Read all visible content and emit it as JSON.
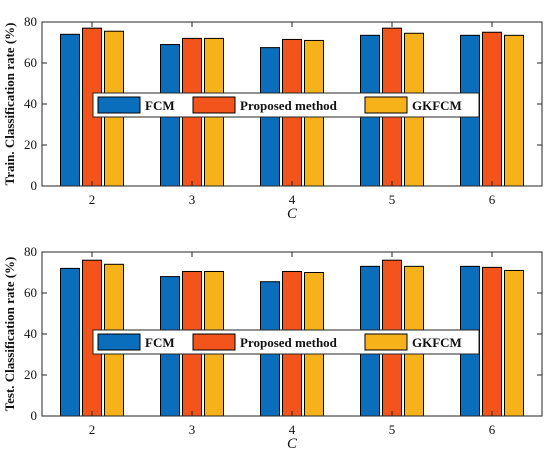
{
  "colors": {
    "FCM": "#0B6EBD",
    "Proposed method": "#F2541B",
    "GKFCM": "#F7B21A"
  },
  "chart_data": [
    {
      "type": "bar",
      "categories": [
        "2",
        "3",
        "4",
        "5",
        "6"
      ],
      "series": [
        {
          "name": "FCM",
          "values": [
            74,
            69,
            67.5,
            73.5,
            73.5
          ]
        },
        {
          "name": "Proposed method",
          "values": [
            77,
            72,
            71.5,
            77,
            75
          ]
        },
        {
          "name": "GKFCM",
          "values": [
            75.5,
            72,
            71,
            74.5,
            73.5
          ]
        }
      ],
      "xlabel": "C",
      "ylabel": "Train. Classification rate (%)",
      "ylim": [
        0,
        80
      ],
      "yticks": [
        "0",
        "20",
        "40",
        "60",
        "80"
      ],
      "legend": "center",
      "grid": false
    },
    {
      "type": "bar",
      "categories": [
        "2",
        "3",
        "4",
        "5",
        "6"
      ],
      "series": [
        {
          "name": "FCM",
          "values": [
            72,
            68,
            65.5,
            73,
            73
          ]
        },
        {
          "name": "Proposed method",
          "values": [
            76,
            70.5,
            70.5,
            76,
            72.5
          ]
        },
        {
          "name": "GKFCM",
          "values": [
            74,
            70.5,
            70,
            73,
            71
          ]
        }
      ],
      "xlabel": "C",
      "ylabel": "Test. Classification rate (%)",
      "ylim": [
        0,
        80
      ],
      "yticks": [
        "0",
        "20",
        "40",
        "60",
        "80"
      ],
      "legend": "center",
      "grid": false
    }
  ]
}
